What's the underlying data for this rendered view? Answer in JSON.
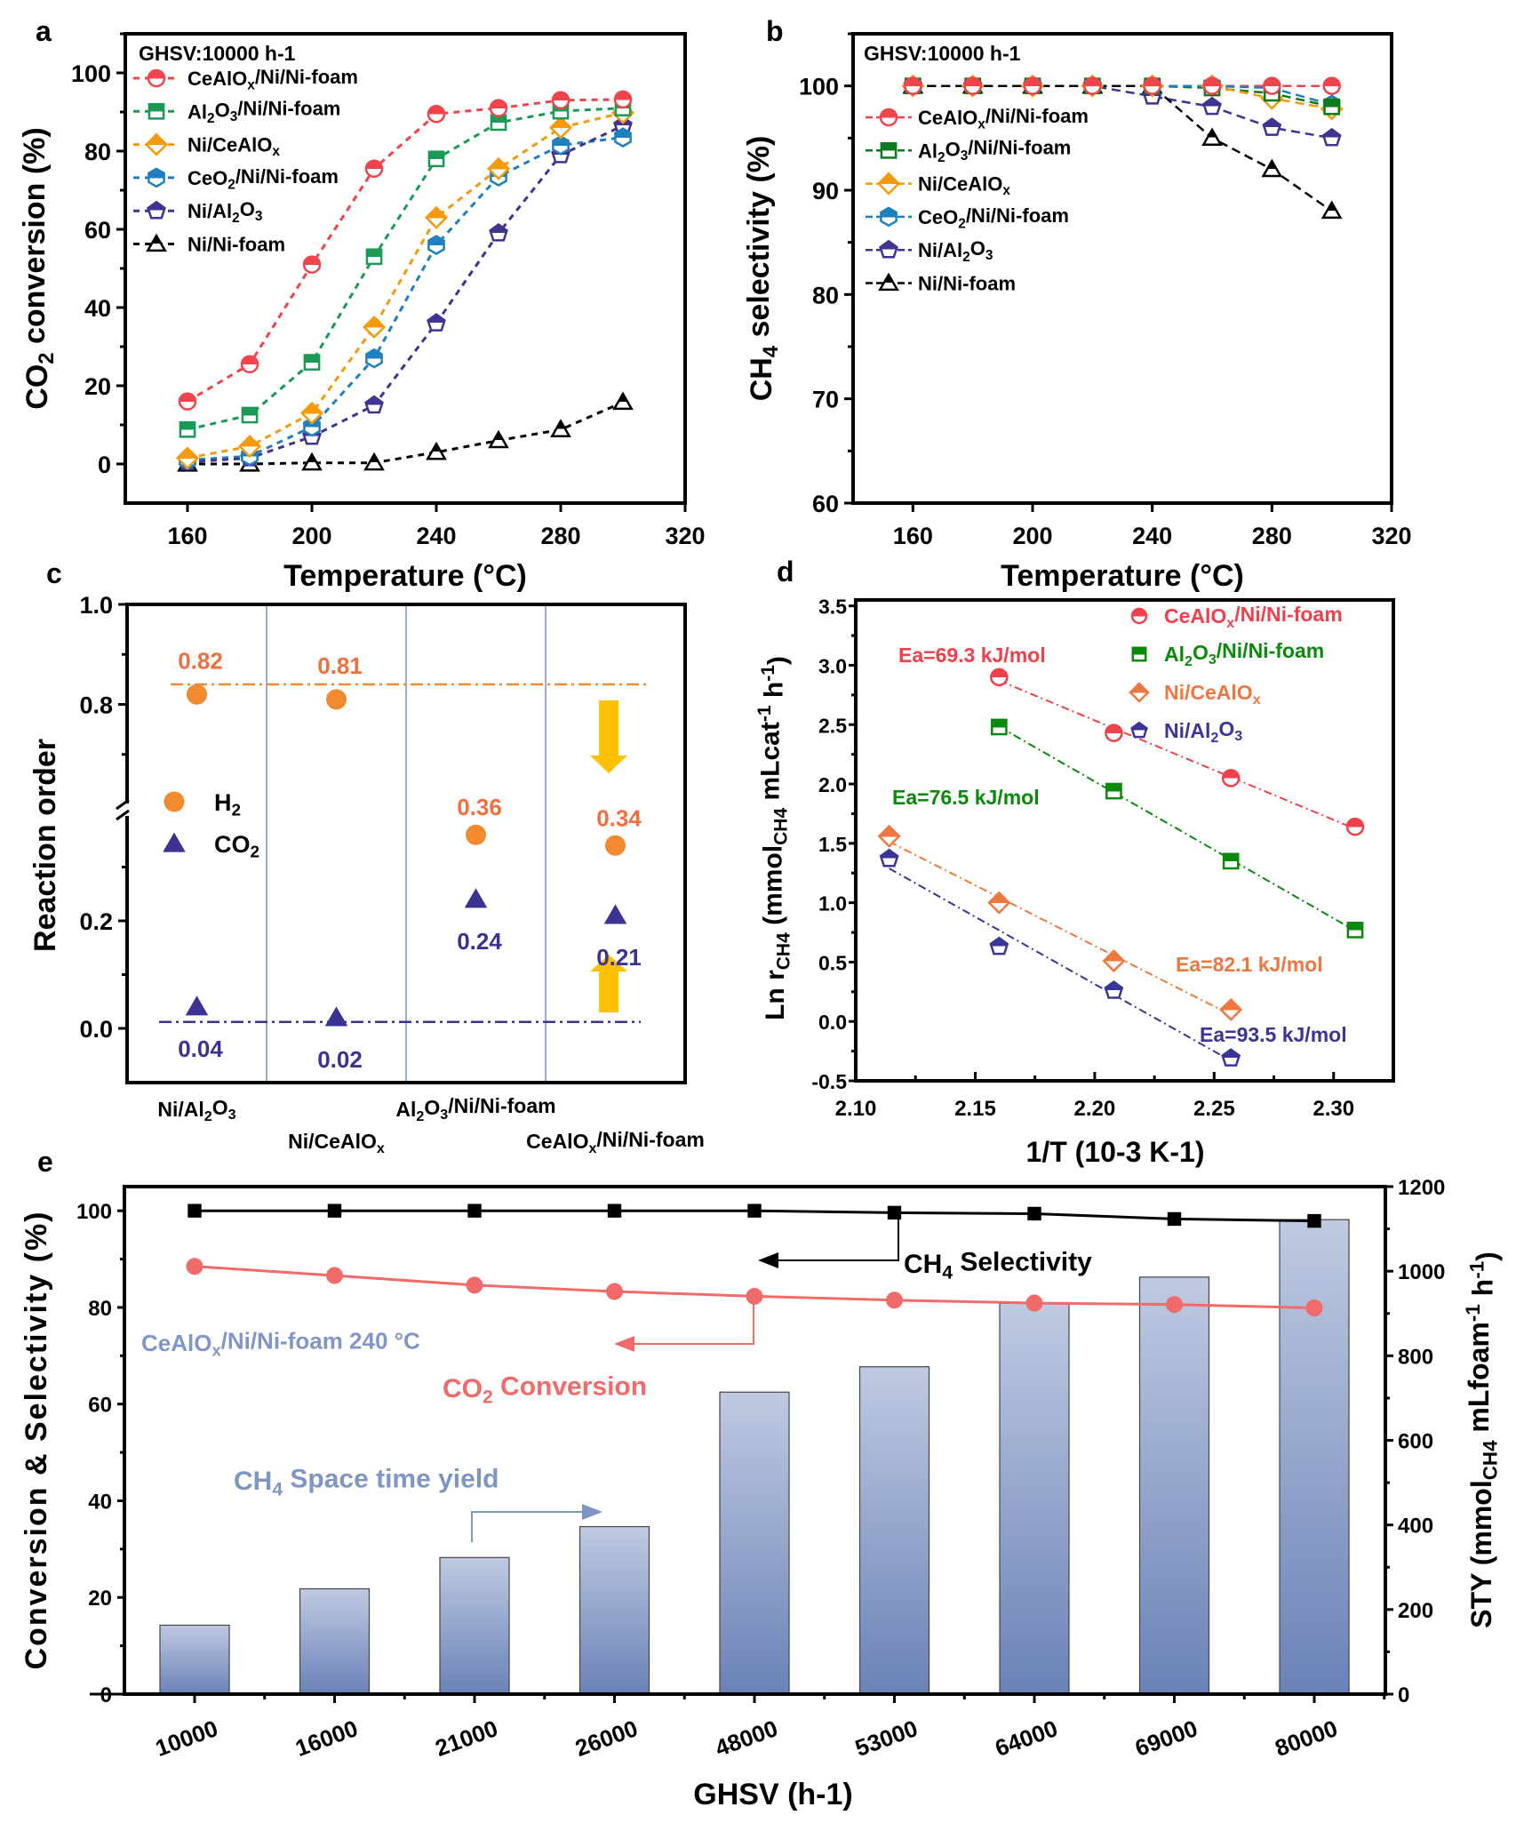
{
  "panel_labels": [
    "a",
    "b",
    "c",
    "d",
    "e"
  ],
  "chart_data": [
    {
      "panel": "a",
      "type": "line",
      "annotation": "GHSV:10000 h-1",
      "xlabel": "Temperature (°C)",
      "ylabel": "CO2 conversion (%)",
      "xlim": [
        140,
        320
      ],
      "ylim": [
        -10,
        110
      ],
      "xticks": [
        160,
        200,
        240,
        280,
        320
      ],
      "yticks": [
        0,
        20,
        40,
        60,
        80,
        100
      ],
      "legend": "top-left",
      "grid": false,
      "x": [
        160,
        180,
        200,
        220,
        240,
        260,
        280,
        300
      ],
      "series": [
        {
          "name": "CeAlOx/Ni/Ni-foam",
          "color": "#f0444c",
          "marker": "circle",
          "values": [
            16,
            25.5,
            51,
            75.5,
            89.5,
            91,
            93,
            93.2
          ]
        },
        {
          "name": "Al2O3/Ni/Ni-foam",
          "color": "#1a9a55",
          "marker": "square",
          "values": [
            8.8,
            12.5,
            26,
            53,
            78,
            87.3,
            90.2,
            91
          ]
        },
        {
          "name": "Ni/CeAlOx",
          "color": "#f59a0b",
          "marker": "diamond",
          "values": [
            1.5,
            4.5,
            13,
            35,
            63,
            75.5,
            86,
            89.8
          ]
        },
        {
          "name": "CeO2/Ni/Ni-foam",
          "color": "#1f80c0",
          "marker": "hexagon",
          "values": [
            1,
            2,
            9.5,
            27,
            56,
            73.5,
            81.5,
            83.5
          ]
        },
        {
          "name": "Ni/Al2O3",
          "color": "#3d3591",
          "marker": "pentagon",
          "values": [
            0.5,
            1.5,
            7,
            15,
            36,
            59,
            79,
            86.5
          ]
        },
        {
          "name": "Ni/Ni-foam",
          "color": "#000000",
          "marker": "triangle",
          "values": [
            0,
            0,
            0.3,
            0.3,
            3,
            6,
            8.8,
            15.8
          ]
        }
      ]
    },
    {
      "panel": "b",
      "type": "line",
      "annotation": "GHSV:10000 h-1",
      "xlabel": "Temperature (°C)",
      "ylabel": "CH4 selectivity (%)",
      "xlim": [
        140,
        320
      ],
      "ylim": [
        60,
        105
      ],
      "xticks": [
        160,
        200,
        240,
        280,
        320
      ],
      "yticks": [
        60,
        70,
        80,
        90,
        100
      ],
      "legend": "top-left",
      "grid": false,
      "x": [
        160,
        180,
        200,
        220,
        240,
        260,
        280,
        300
      ],
      "series": [
        {
          "name": "CeAlOx/Ni/Ni-foam",
          "color": "#f0444c",
          "marker": "circle",
          "values": [
            100,
            100,
            100,
            100,
            100,
            100,
            100,
            100
          ]
        },
        {
          "name": "Al2O3/Ni/Ni-foam",
          "color": "#0a7a1a",
          "marker": "square",
          "values": [
            100,
            100,
            100,
            100,
            100,
            99.8,
            99.3,
            98
          ]
        },
        {
          "name": "Ni/CeAlOx",
          "color": "#f59a0b",
          "marker": "diamond",
          "values": [
            100,
            100,
            100,
            100,
            100,
            100,
            98.8,
            97.8
          ]
        },
        {
          "name": "CeO2/Ni/Ni-foam",
          "color": "#1f80c0",
          "marker": "hexagon",
          "values": [
            100,
            100,
            100,
            100,
            100,
            100,
            99.8,
            98.2
          ]
        },
        {
          "name": "Ni/Al2O3",
          "color": "#3d3591",
          "marker": "pentagon",
          "values": [
            100,
            100,
            100,
            100,
            99,
            98,
            96,
            95
          ]
        },
        {
          "name": "Ni/Ni-foam",
          "color": "#000000",
          "marker": "triangle",
          "values": [
            100,
            100,
            100,
            100,
            100,
            95,
            92,
            88
          ]
        }
      ]
    },
    {
      "panel": "c",
      "type": "scatter",
      "ylabel": "Reaction order",
      "categories": [
        "Ni/Al2O3",
        "Ni/CeAlOx",
        "Al2O3/Ni/Ni-foam",
        "CeAlOx/Ni/Ni-foam"
      ],
      "yticks": [
        "0.0",
        "0.2",
        "0.8",
        "1.0"
      ],
      "axis_break": true,
      "legend": "left",
      "series": [
        {
          "name": "H2",
          "color": "#f28a30",
          "label_color": "#f07040",
          "marker": "circle",
          "values": [
            0.82,
            0.81,
            0.36,
            0.34
          ],
          "labels": [
            "0.82",
            "0.81",
            "0.36",
            "0.34"
          ]
        },
        {
          "name": "CO2",
          "color": "#3b3393",
          "label_color": "#3b3393",
          "marker": "triangle",
          "values": [
            0.04,
            0.02,
            0.24,
            0.21
          ],
          "labels": [
            "0.04",
            "0.02",
            "0.24",
            "0.21"
          ]
        }
      ],
      "guide_lines": [
        {
          "y": 0.84,
          "color": "#f08a30"
        },
        {
          "y": 0.012,
          "color": "#3b3393"
        }
      ],
      "arrow_color": "#ffc000"
    },
    {
      "panel": "d",
      "type": "scatter",
      "xlabel": "1/T (10-3 K-1)",
      "ylabel": "Ln rCH4 (mmolCH4 mLcat-1 h-1)",
      "xlim": [
        2.1,
        2.325
      ],
      "ylim": [
        -0.5,
        3.55
      ],
      "xticks": [
        "2.10",
        "2.15",
        "2.20",
        "2.25",
        "2.30"
      ],
      "yticks": [
        "-0.5",
        "0.0",
        "0.5",
        "1.0",
        "1.5",
        "2.0",
        "2.5",
        "3.0",
        "3.5"
      ],
      "legend": "top-right",
      "series": [
        {
          "name": "CeAlOx/Ni/Ni-foam",
          "color": "#f0404a",
          "marker": "circle",
          "ea": "Ea=69.3 kJ/mol",
          "points": [
            [
              2.16,
              2.9
            ],
            [
              2.208,
              2.43
            ],
            [
              2.257,
              2.05
            ],
            [
              2.309,
              1.64
            ]
          ]
        },
        {
          "name": "Al2O3/Ni/Ni-foam",
          "color": "#0a8a0a",
          "marker": "square",
          "ea": "Ea=76.5 kJ/mol",
          "points": [
            [
              2.16,
              2.48
            ],
            [
              2.208,
              1.94
            ],
            [
              2.257,
              1.35
            ],
            [
              2.309,
              0.77
            ]
          ]
        },
        {
          "name": "Ni/CeAlOx",
          "color": "#f07840",
          "marker": "diamond",
          "ea": "Ea=82.1 kJ/mol",
          "points": [
            [
              2.114,
              1.56
            ],
            [
              2.16,
              1.0
            ],
            [
              2.208,
              0.51
            ],
            [
              2.257,
              0.1
            ]
          ]
        },
        {
          "name": "Ni/Al2O3",
          "color": "#3a3596",
          "marker": "pentagon",
          "ea": "Ea=93.5 kJ/mol",
          "points": [
            [
              2.114,
              1.37
            ],
            [
              2.16,
              0.63
            ],
            [
              2.208,
              0.26
            ],
            [
              2.257,
              -0.31
            ]
          ]
        }
      ]
    },
    {
      "panel": "e",
      "type": "bar+line",
      "xlabel": "GHSV (h-1)",
      "ylabel_left": "Conversion & Selectivity (%)",
      "ylabel_right": "STY (mmolCH4 mLfoam-1 h-1)",
      "ylim_left": [
        0,
        105
      ],
      "ylim_right": [
        0,
        1200
      ],
      "yticks_left": [
        0,
        20,
        40,
        60,
        80,
        100
      ],
      "yticks_right": [
        0,
        200,
        400,
        600,
        800,
        1000,
        1200
      ],
      "categories": [
        "10000",
        "16000",
        "21000",
        "26000",
        "48000",
        "53000",
        "64000",
        "69000",
        "80000"
      ],
      "annotation": "CeAlOx/Ni/Ni-foam   240 °C",
      "annotation_color": "#8196c6",
      "series": [
        {
          "name": "CH4 Selectivity",
          "type": "line",
          "axis": "left",
          "color": "#000000",
          "marker": "square",
          "values": [
            100,
            100,
            100,
            100,
            100,
            99.6,
            99.4,
            98.3,
            97.9
          ]
        },
        {
          "name": "CO2 Conversion",
          "type": "line",
          "axis": "left",
          "color": "#f26b6b",
          "marker": "circle",
          "values": [
            88.5,
            86.6,
            84.6,
            83.3,
            82.3,
            81.5,
            80.9,
            80.6,
            79.9
          ]
        },
        {
          "name": "CH4 Space time yield",
          "type": "bar",
          "axis": "right",
          "color": "#7f95c4",
          "values": [
            163,
            249,
            323,
            396,
            714,
            774,
            924,
            986,
            1122
          ]
        }
      ]
    }
  ]
}
